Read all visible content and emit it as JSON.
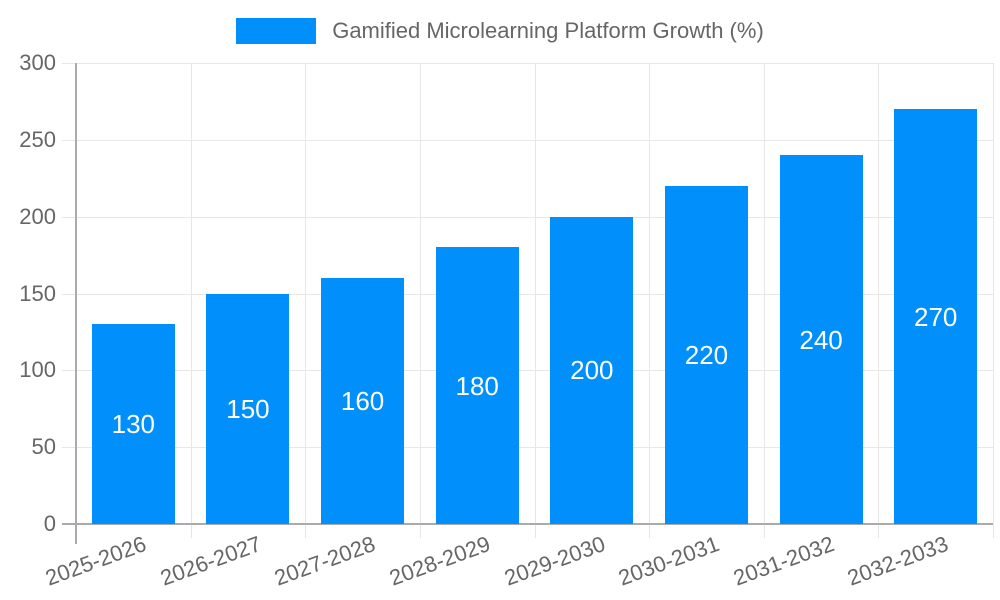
{
  "chart_data": {
    "type": "bar",
    "title": "Gamified Microlearning Platform Growth (%)",
    "legend": {
      "position": "top",
      "entries": [
        {
          "label": "Gamified Microlearning Platform Growth (%)",
          "color": "#008FFB"
        }
      ]
    },
    "categories": [
      "2025-2026",
      "2026-2027",
      "2027-2028",
      "2028-2029",
      "2029-2030",
      "2030-2031",
      "2031-2032",
      "2032-2033"
    ],
    "series": [
      {
        "name": "Gamified Microlearning Platform Growth (%)",
        "values": [
          130,
          150,
          160,
          180,
          200,
          220,
          240,
          270
        ]
      }
    ],
    "bar_value_labels": [
      "130",
      "150",
      "160",
      "180",
      "200",
      "220",
      "240",
      "270"
    ],
    "xlabel": "",
    "ylabel": "",
    "ylim": [
      0,
      300
    ],
    "yticks": [
      0,
      50,
      100,
      150,
      200,
      250,
      300
    ],
    "ytick_labels": [
      "0",
      "50",
      "100",
      "150",
      "200",
      "250",
      "300"
    ],
    "grid": true,
    "x_label_rotation_deg": -20,
    "colors": {
      "bar": "#008FFB",
      "bar_label": "#FFFFFF",
      "axis_text": "#666666",
      "gridline": "#E7E7E7",
      "axis_line": "#ABABAB",
      "background": "#FFFFFF"
    }
  }
}
